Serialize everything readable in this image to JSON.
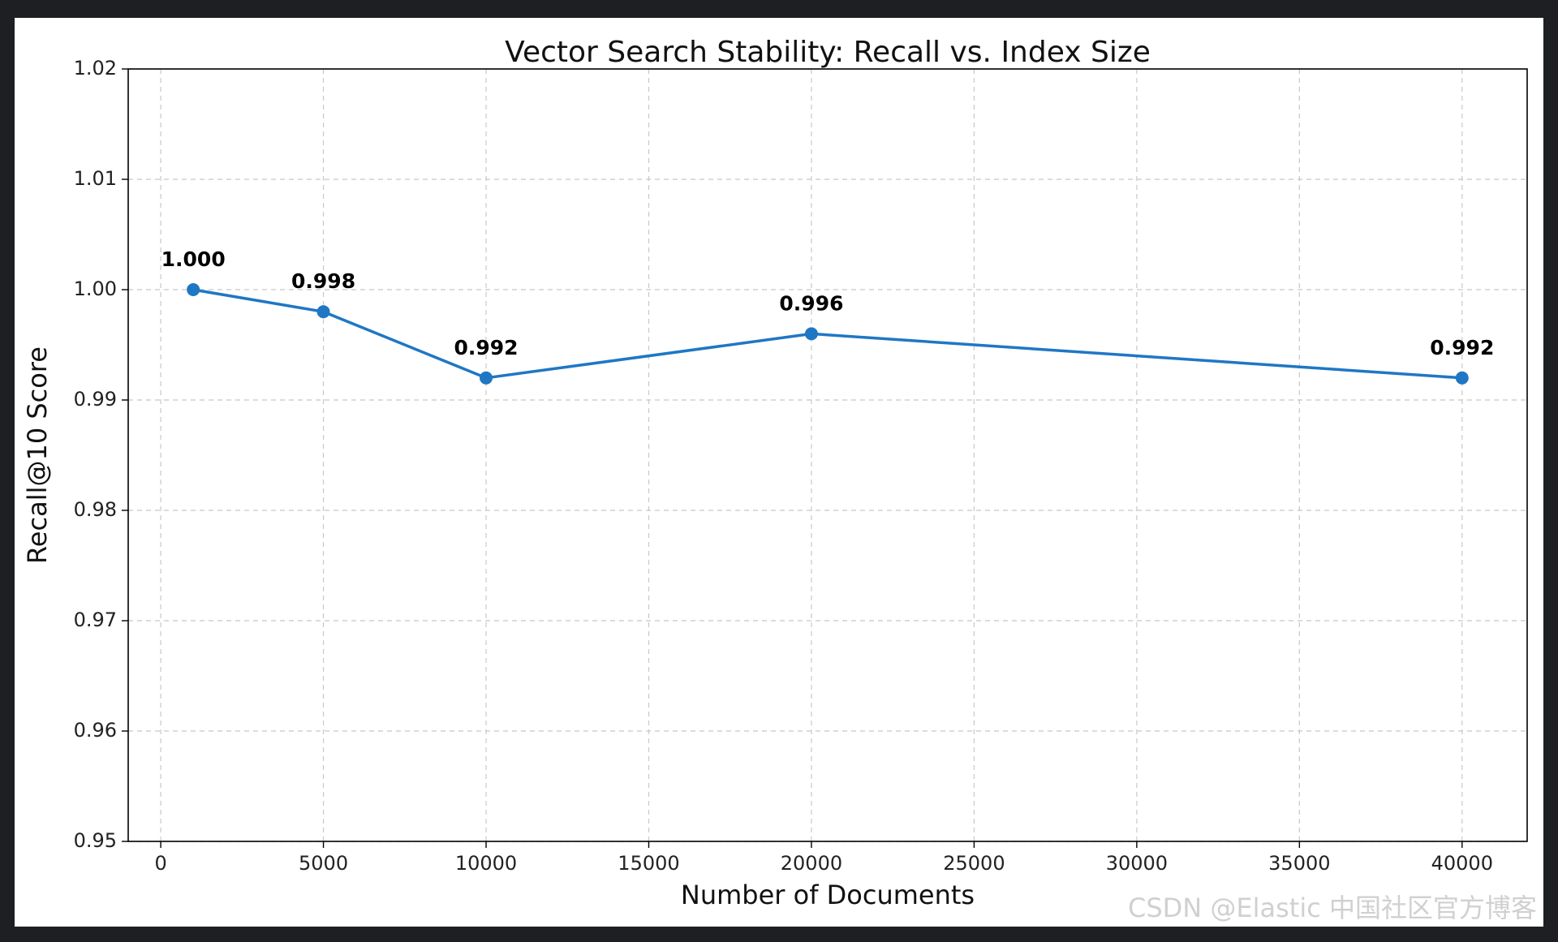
{
  "chart_data": {
    "type": "line",
    "title": "Vector Search Stability: Recall vs. Index Size",
    "xlabel": "Number of Documents",
    "ylabel": "Recall@10 Score",
    "x": [
      1000,
      5000,
      10000,
      20000,
      40000
    ],
    "series": [
      {
        "values": [
          1.0,
          0.998,
          0.992,
          0.996,
          0.992
        ],
        "data_labels": [
          "1.000",
          "0.998",
          "0.992",
          "0.996",
          "0.992"
        ],
        "color": "#1f77c4"
      }
    ],
    "xlim": [
      -1000,
      42000
    ],
    "ylim": [
      0.95,
      1.02
    ],
    "x_ticks": [
      0,
      5000,
      10000,
      15000,
      20000,
      25000,
      30000,
      35000,
      40000
    ],
    "x_tick_labels": [
      "0",
      "5000",
      "10000",
      "15000",
      "20000",
      "25000",
      "30000",
      "35000",
      "40000"
    ],
    "y_ticks": [
      0.95,
      0.96,
      0.97,
      0.98,
      0.99,
      1.0,
      1.01,
      1.02
    ],
    "y_tick_labels": [
      "0.95",
      "0.96",
      "0.97",
      "0.98",
      "0.99",
      "1.00",
      "1.01",
      "1.02"
    ],
    "grid": true,
    "grid_style": "dashed"
  },
  "watermark": "CSDN @Elastic 中国社区官方博客"
}
